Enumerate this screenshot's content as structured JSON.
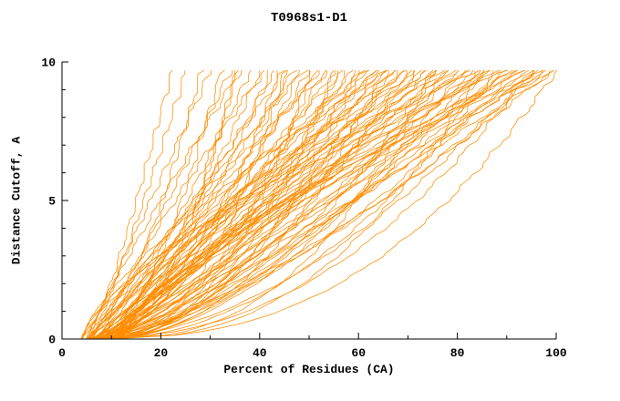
{
  "chart": {
    "title": "T0968s1-D1",
    "xlabel": "Percent of Residues (CA)",
    "ylabel": "Distance Cutoff, A"
  },
  "chart_data": {
    "type": "line",
    "title": "T0968s1-D1",
    "xlabel": "Percent of Residues (CA)",
    "ylabel": "Distance Cutoff, A",
    "xlim": [
      0,
      100
    ],
    "ylim": [
      0,
      10
    ],
    "x_major_ticks": [
      0,
      20,
      40,
      60,
      80,
      100
    ],
    "x_minor_step": 10,
    "y_major_ticks": [
      0,
      5,
      10
    ],
    "y_minor_step": 1,
    "grid": false,
    "legend": "none",
    "line_color": "#ff8c00",
    "curve_ymax": 9.7,
    "curves_encoding": "each curve = [x_percent_at_y0, x_percent_at_ymax, shape_exponent]; x(y) = x0 + (x1-x0)*(y/ymax)^p",
    "curves": [
      [
        5,
        22,
        0.8
      ],
      [
        6,
        25,
        0.9
      ],
      [
        7,
        28,
        0.7
      ],
      [
        5,
        30,
        1.0
      ],
      [
        8,
        32,
        0.6
      ],
      [
        6,
        34,
        0.9
      ],
      [
        9,
        35,
        0.5
      ],
      [
        5,
        36,
        1.1
      ],
      [
        7,
        38,
        0.8
      ],
      [
        6,
        40,
        0.7
      ],
      [
        8,
        41,
        1.2
      ],
      [
        5,
        42,
        0.6
      ],
      [
        9,
        43,
        0.9
      ],
      [
        6,
        44,
        0.5
      ],
      [
        7,
        45,
        1.0
      ],
      [
        10,
        46,
        0.7
      ],
      [
        5,
        47,
        0.85
      ],
      [
        8,
        48,
        0.6
      ],
      [
        6,
        49,
        1.1
      ],
      [
        7,
        50,
        0.75
      ],
      [
        9,
        51,
        0.5
      ],
      [
        5,
        52,
        0.95
      ],
      [
        8,
        53,
        0.65
      ],
      [
        6,
        54,
        1.2
      ],
      [
        7,
        55,
        0.8
      ],
      [
        10,
        56,
        0.55
      ],
      [
        5,
        57,
        1.0
      ],
      [
        8,
        58,
        0.7
      ],
      [
        6,
        59,
        0.9
      ],
      [
        7,
        60,
        0.6
      ],
      [
        9,
        61,
        1.1
      ],
      [
        5,
        62,
        0.75
      ],
      [
        8,
        63,
        0.5
      ],
      [
        6,
        64,
        0.95
      ],
      [
        7,
        65,
        0.8
      ],
      [
        10,
        66,
        0.6
      ],
      [
        5,
        67,
        1.05
      ],
      [
        8,
        68,
        0.7
      ],
      [
        6,
        69,
        0.85
      ],
      [
        7,
        70,
        0.55
      ],
      [
        9,
        71,
        1.0
      ],
      [
        5,
        72,
        0.65
      ],
      [
        8,
        73,
        0.9
      ],
      [
        6,
        74,
        0.75
      ],
      [
        7,
        75,
        0.5
      ],
      [
        10,
        76,
        1.1
      ],
      [
        5,
        77,
        0.8
      ],
      [
        8,
        78,
        0.6
      ],
      [
        6,
        79,
        0.95
      ],
      [
        7,
        80,
        0.7
      ],
      [
        9,
        81,
        0.55
      ],
      [
        5,
        82,
        1.0
      ],
      [
        8,
        83,
        0.75
      ],
      [
        6,
        84,
        0.6
      ],
      [
        7,
        85,
        0.9
      ],
      [
        10,
        86,
        0.65
      ],
      [
        5,
        87,
        1.05
      ],
      [
        8,
        88,
        0.5
      ],
      [
        6,
        89,
        0.8
      ],
      [
        7,
        90,
        0.7
      ],
      [
        9,
        91,
        0.95
      ],
      [
        5,
        92,
        0.6
      ],
      [
        8,
        93,
        1.1
      ],
      [
        6,
        94,
        0.75
      ],
      [
        7,
        95,
        0.55
      ],
      [
        10,
        96,
        0.85
      ],
      [
        5,
        97,
        0.65
      ],
      [
        8,
        98,
        1.0
      ],
      [
        6,
        99,
        0.7
      ],
      [
        7,
        100,
        0.9
      ],
      [
        11,
        100,
        1.3
      ],
      [
        12,
        98,
        1.4
      ],
      [
        4,
        96,
        1.2
      ],
      [
        11,
        94,
        1.35
      ],
      [
        12,
        92,
        1.25
      ],
      [
        4,
        90,
        1.45
      ],
      [
        11,
        88,
        1.3
      ],
      [
        12,
        86,
        1.2
      ],
      [
        4,
        84,
        1.4
      ],
      [
        11,
        82,
        1.25
      ],
      [
        12,
        80,
        1.35
      ],
      [
        4,
        78,
        1.2
      ],
      [
        11,
        76,
        1.45
      ],
      [
        12,
        74,
        1.3
      ],
      [
        4,
        72,
        1.25
      ],
      [
        11,
        70,
        1.4
      ],
      [
        12,
        68,
        1.2
      ],
      [
        4,
        66,
        1.35
      ],
      [
        11,
        64,
        1.25
      ],
      [
        12,
        62,
        1.45
      ],
      [
        5,
        35,
        0.45
      ],
      [
        6,
        45,
        0.4
      ],
      [
        7,
        55,
        0.42
      ],
      [
        8,
        65,
        0.45
      ],
      [
        9,
        75,
        0.4
      ],
      [
        10,
        85,
        0.42
      ],
      [
        5,
        95,
        0.45
      ],
      [
        6,
        100,
        0.4
      ],
      [
        7,
        60,
        0.45
      ],
      [
        8,
        50,
        0.4
      ]
    ]
  }
}
